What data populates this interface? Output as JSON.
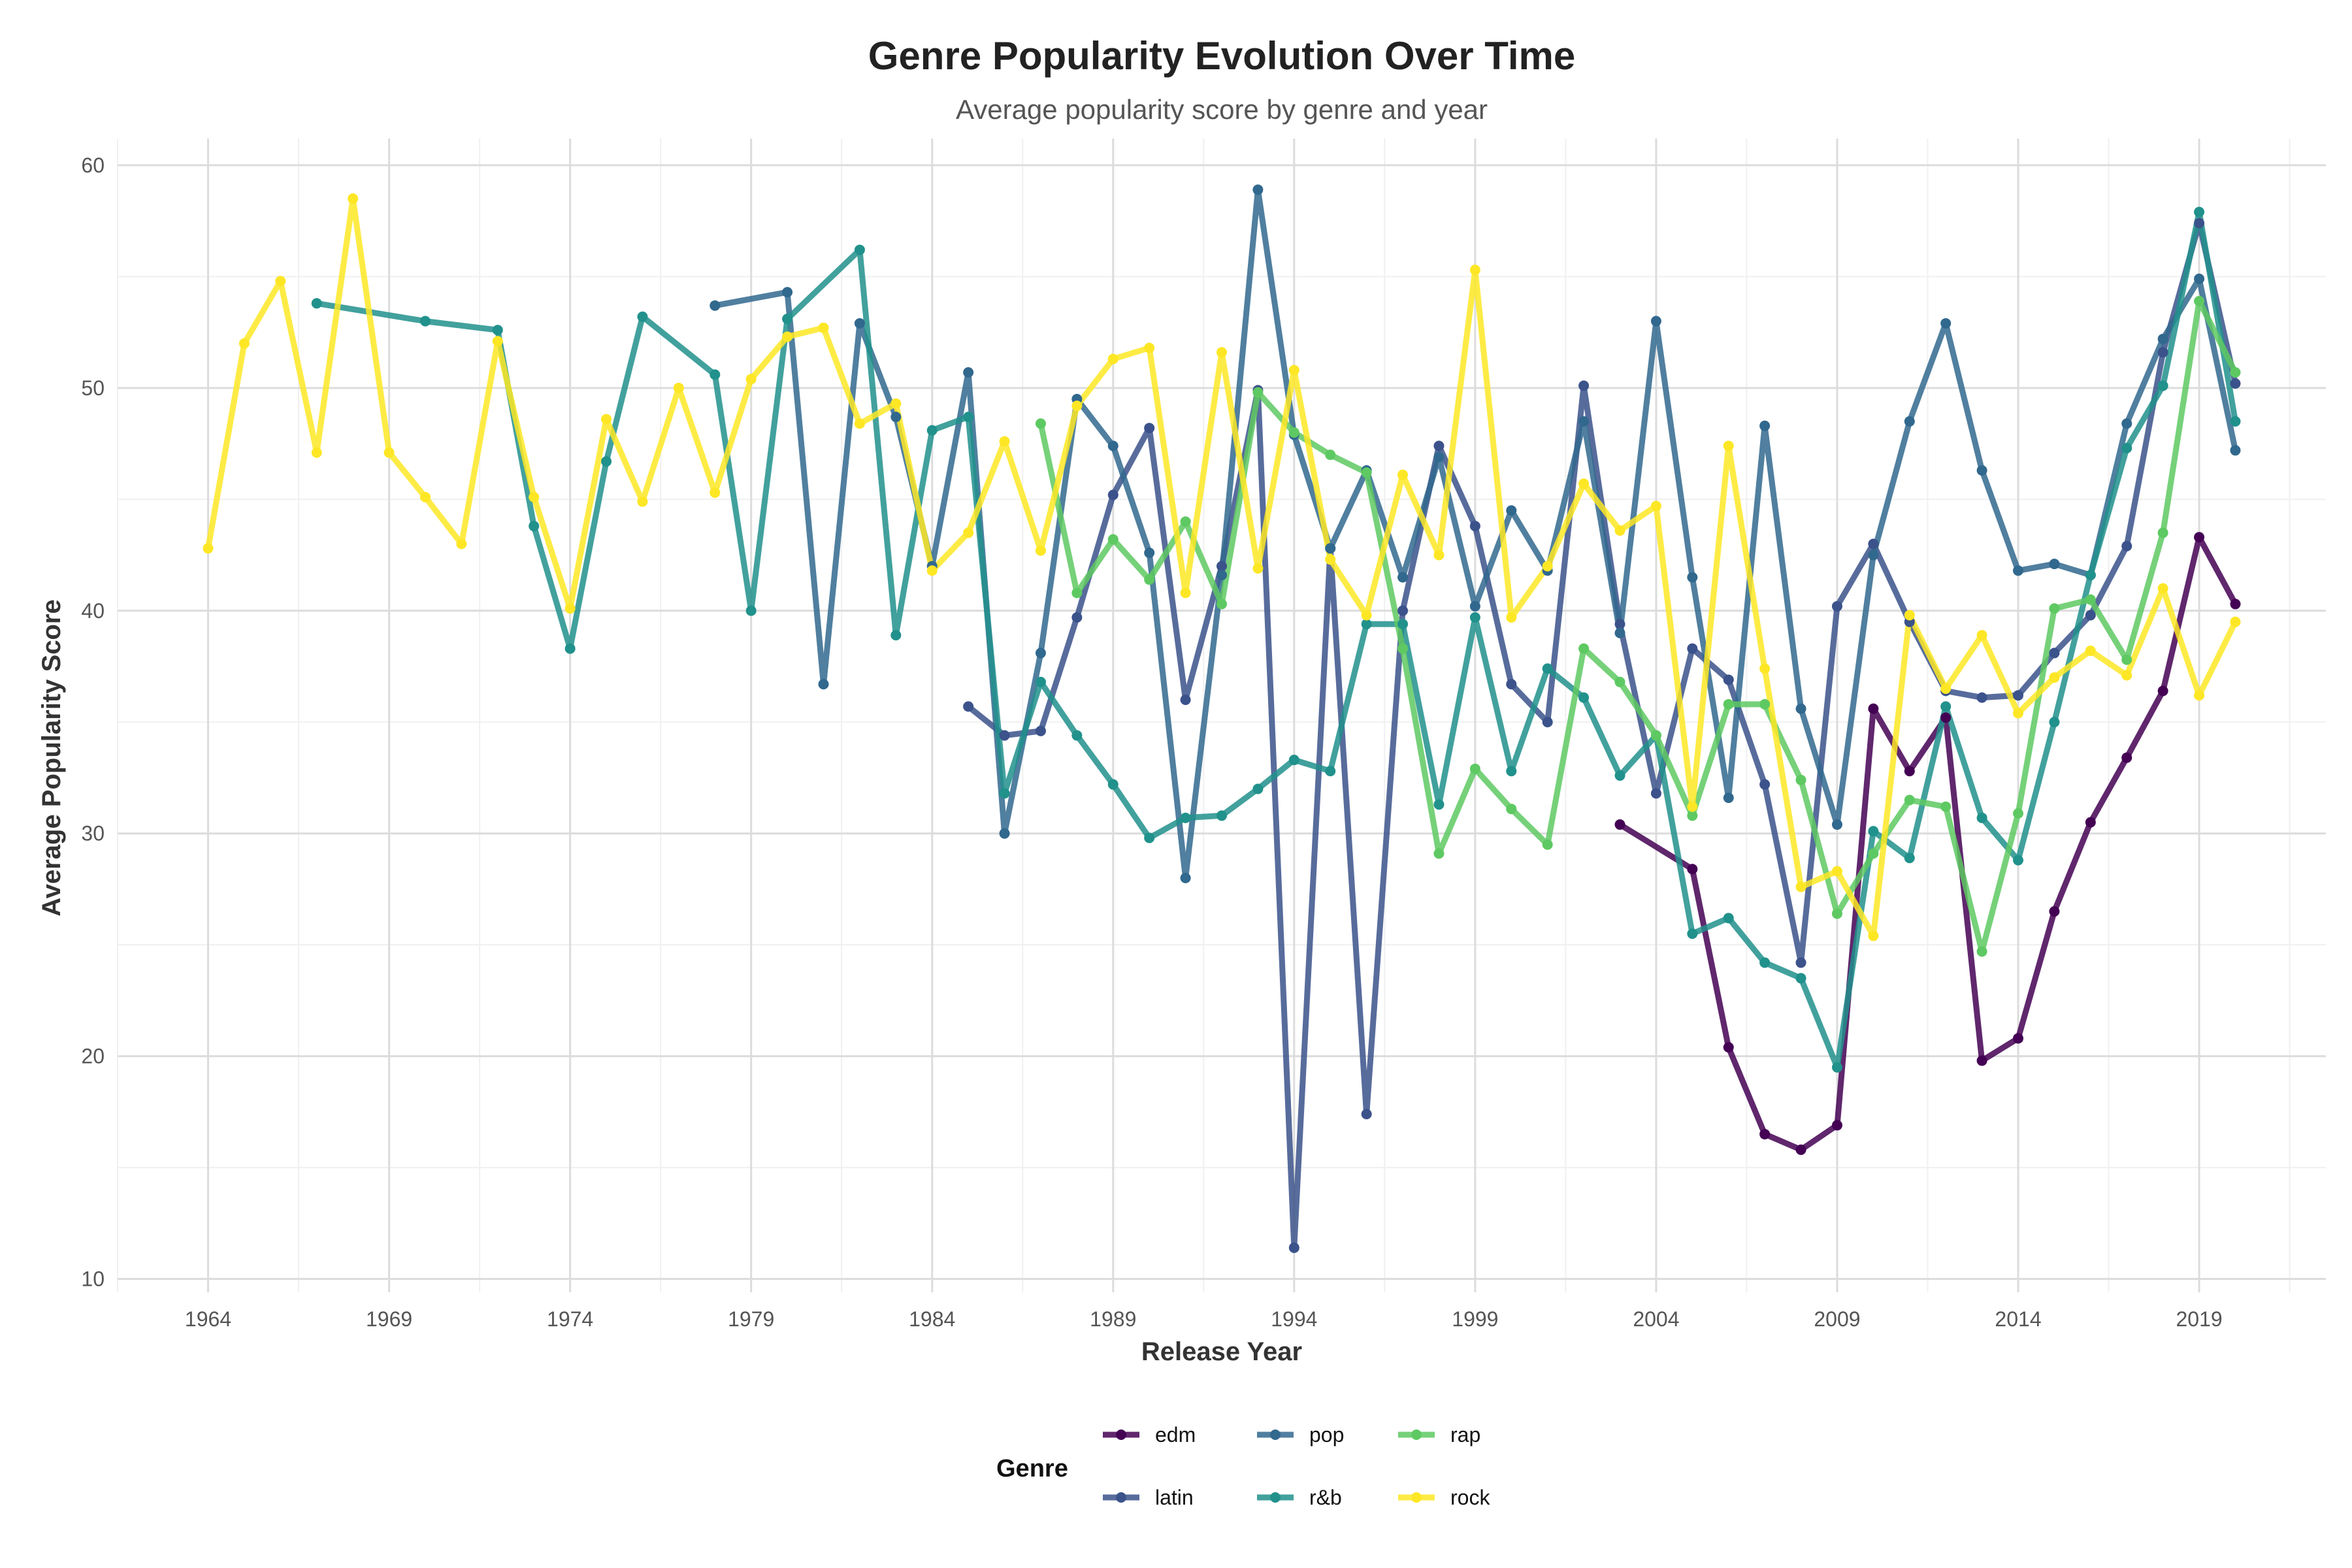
{
  "chart_data": {
    "type": "line",
    "title": "Genre Popularity Evolution Over Time",
    "subtitle": "Average popularity score by genre and year",
    "xlabel": "Release Year",
    "ylabel": "Average Popularity Score",
    "xlim": [
      1961.5,
      2022.5
    ],
    "ylim": [
      9.4,
      61.2
    ],
    "x_ticks": [
      1964,
      1969,
      1974,
      1979,
      1984,
      1989,
      1994,
      1999,
      2004,
      2009,
      2014,
      2019
    ],
    "y_ticks": [
      10,
      20,
      30,
      40,
      50,
      60
    ],
    "grid": true,
    "legend": {
      "title": "Genre",
      "position": "bottom"
    },
    "series": [
      {
        "name": "edm",
        "color": "#440154",
        "x": [
          2003,
          2005,
          2006,
          2007,
          2008,
          2009,
          2010,
          2011,
          2012,
          2013,
          2014,
          2015,
          2016,
          2017,
          2018,
          2019,
          2020
        ],
        "y": [
          30.4,
          28.4,
          20.4,
          16.5,
          15.8,
          16.9,
          35.6,
          32.8,
          35.2,
          19.8,
          20.8,
          26.5,
          30.5,
          33.4,
          36.4,
          43.3,
          40.3
        ]
      },
      {
        "name": "latin",
        "color": "#3b528b",
        "x": [
          1985,
          1986,
          1987,
          1988,
          1989,
          1990,
          1991,
          1992,
          1993,
          1994,
          1995,
          1996,
          1997,
          1998,
          1999,
          2000,
          2001,
          2002,
          2003,
          2004,
          2005,
          2006,
          2007,
          2008,
          2009,
          2010,
          2011,
          2012,
          2013,
          2014,
          2015,
          2016,
          2017,
          2018,
          2019,
          2020
        ],
        "y": [
          35.7,
          34.4,
          34.6,
          39.7,
          45.2,
          48.2,
          36.0,
          42.0,
          49.9,
          11.4,
          42.8,
          17.4,
          40.0,
          47.4,
          43.8,
          36.7,
          35.0,
          50.1,
          39.4,
          31.8,
          38.3,
          36.9,
          32.2,
          24.2,
          40.2,
          43.0,
          39.5,
          36.4,
          36.1,
          36.2,
          38.1,
          39.8,
          42.9,
          51.6,
          57.4,
          50.2
        ]
      },
      {
        "name": "pop",
        "color": "#31688e",
        "x": [
          1978,
          1980,
          1981,
          1982,
          1983,
          1984,
          1985,
          1986,
          1987,
          1988,
          1989,
          1990,
          1991,
          1992,
          1993,
          1994,
          1995,
          1996,
          1997,
          1998,
          1999,
          2000,
          2001,
          2002,
          2003,
          2004,
          2005,
          2006,
          2007,
          2008,
          2009,
          2010,
          2011,
          2012,
          2013,
          2014,
          2015,
          2016,
          2017,
          2018,
          2019,
          2020
        ],
        "y": [
          53.7,
          54.3,
          36.7,
          52.9,
          48.7,
          42.0,
          50.7,
          30.0,
          38.1,
          49.5,
          47.4,
          42.6,
          28.0,
          41.6,
          58.9,
          47.9,
          42.8,
          46.3,
          41.5,
          46.9,
          40.2,
          44.5,
          41.8,
          48.5,
          39.0,
          53.0,
          41.5,
          31.6,
          48.3,
          35.6,
          30.4,
          42.5,
          48.5,
          52.9,
          46.3,
          41.8,
          42.1,
          41.6,
          48.4,
          52.2,
          54.9,
          47.2
        ]
      },
      {
        "name": "r&b",
        "color": "#21918c",
        "x": [
          1967,
          1970,
          1972,
          1973,
          1974,
          1975,
          1976,
          1978,
          1979,
          1980,
          1982,
          1983,
          1984,
          1985,
          1986,
          1987,
          1988,
          1989,
          1990,
          1991,
          1992,
          1993,
          1994,
          1995,
          1996,
          1997,
          1998,
          1999,
          2000,
          2001,
          2002,
          2003,
          2004,
          2005,
          2006,
          2007,
          2008,
          2009,
          2010,
          2011,
          2012,
          2013,
          2014,
          2015,
          2016,
          2017,
          2018,
          2019,
          2020
        ],
        "y": [
          53.8,
          53.0,
          52.6,
          43.8,
          38.3,
          46.7,
          53.2,
          50.6,
          40.0,
          53.1,
          56.2,
          38.9,
          48.1,
          48.7,
          31.8,
          36.8,
          34.4,
          32.2,
          29.8,
          30.7,
          30.8,
          32.0,
          33.3,
          32.8,
          39.4,
          39.4,
          31.3,
          39.7,
          32.8,
          37.4,
          36.1,
          32.6,
          34.4,
          25.5,
          26.2,
          24.2,
          23.5,
          19.5,
          30.1,
          28.9,
          35.7,
          30.7,
          28.8,
          35.0,
          41.6,
          47.3,
          50.1,
          57.9,
          48.5
        ]
      },
      {
        "name": "rap",
        "color": "#5ec962",
        "x": [
          1987,
          1988,
          1989,
          1990,
          1991,
          1992,
          1993,
          1994,
          1995,
          1996,
          1997,
          1998,
          1999,
          2000,
          2001,
          2002,
          2003,
          2004,
          2005,
          2006,
          2007,
          2008,
          2009,
          2010,
          2011,
          2012,
          2013,
          2014,
          2015,
          2016,
          2017,
          2018,
          2019,
          2020
        ],
        "y": [
          48.4,
          40.8,
          43.2,
          41.4,
          44.0,
          40.3,
          49.8,
          48.0,
          47.0,
          46.2,
          38.3,
          29.1,
          32.9,
          31.1,
          29.5,
          38.3,
          36.8,
          34.4,
          30.8,
          35.8,
          35.8,
          32.4,
          26.4,
          29.1,
          31.5,
          31.2,
          24.7,
          30.9,
          40.1,
          40.5,
          37.8,
          43.5,
          53.9,
          50.7
        ]
      },
      {
        "name": "rock",
        "color": "#fde725",
        "x": [
          1964,
          1965,
          1966,
          1967,
          1968,
          1969,
          1970,
          1971,
          1972,
          1973,
          1974,
          1975,
          1976,
          1977,
          1978,
          1979,
          1980,
          1981,
          1982,
          1983,
          1984,
          1985,
          1986,
          1987,
          1988,
          1989,
          1990,
          1991,
          1992,
          1993,
          1994,
          1995,
          1996,
          1997,
          1998,
          1999,
          2000,
          2001,
          2002,
          2003,
          2004,
          2005,
          2006,
          2007,
          2008,
          2009,
          2010,
          2011,
          2012,
          2013,
          2014,
          2015,
          2016,
          2017,
          2018,
          2019,
          2020
        ],
        "y": [
          42.8,
          52.0,
          54.8,
          47.1,
          58.5,
          47.1,
          45.1,
          43.0,
          52.1,
          45.1,
          40.1,
          48.6,
          44.9,
          50.0,
          45.3,
          50.4,
          52.3,
          52.7,
          48.4,
          49.3,
          41.8,
          43.5,
          47.6,
          42.7,
          49.2,
          51.3,
          51.8,
          40.8,
          51.6,
          41.9,
          50.8,
          42.3,
          39.8,
          46.1,
          42.5,
          55.3,
          39.7,
          42.0,
          45.7,
          43.6,
          44.7,
          31.2,
          47.4,
          37.4,
          27.6,
          28.3,
          25.4,
          39.8,
          36.5,
          38.9,
          35.4,
          37.0,
          38.2,
          37.1,
          41.0,
          36.2,
          39.5
        ]
      }
    ]
  }
}
